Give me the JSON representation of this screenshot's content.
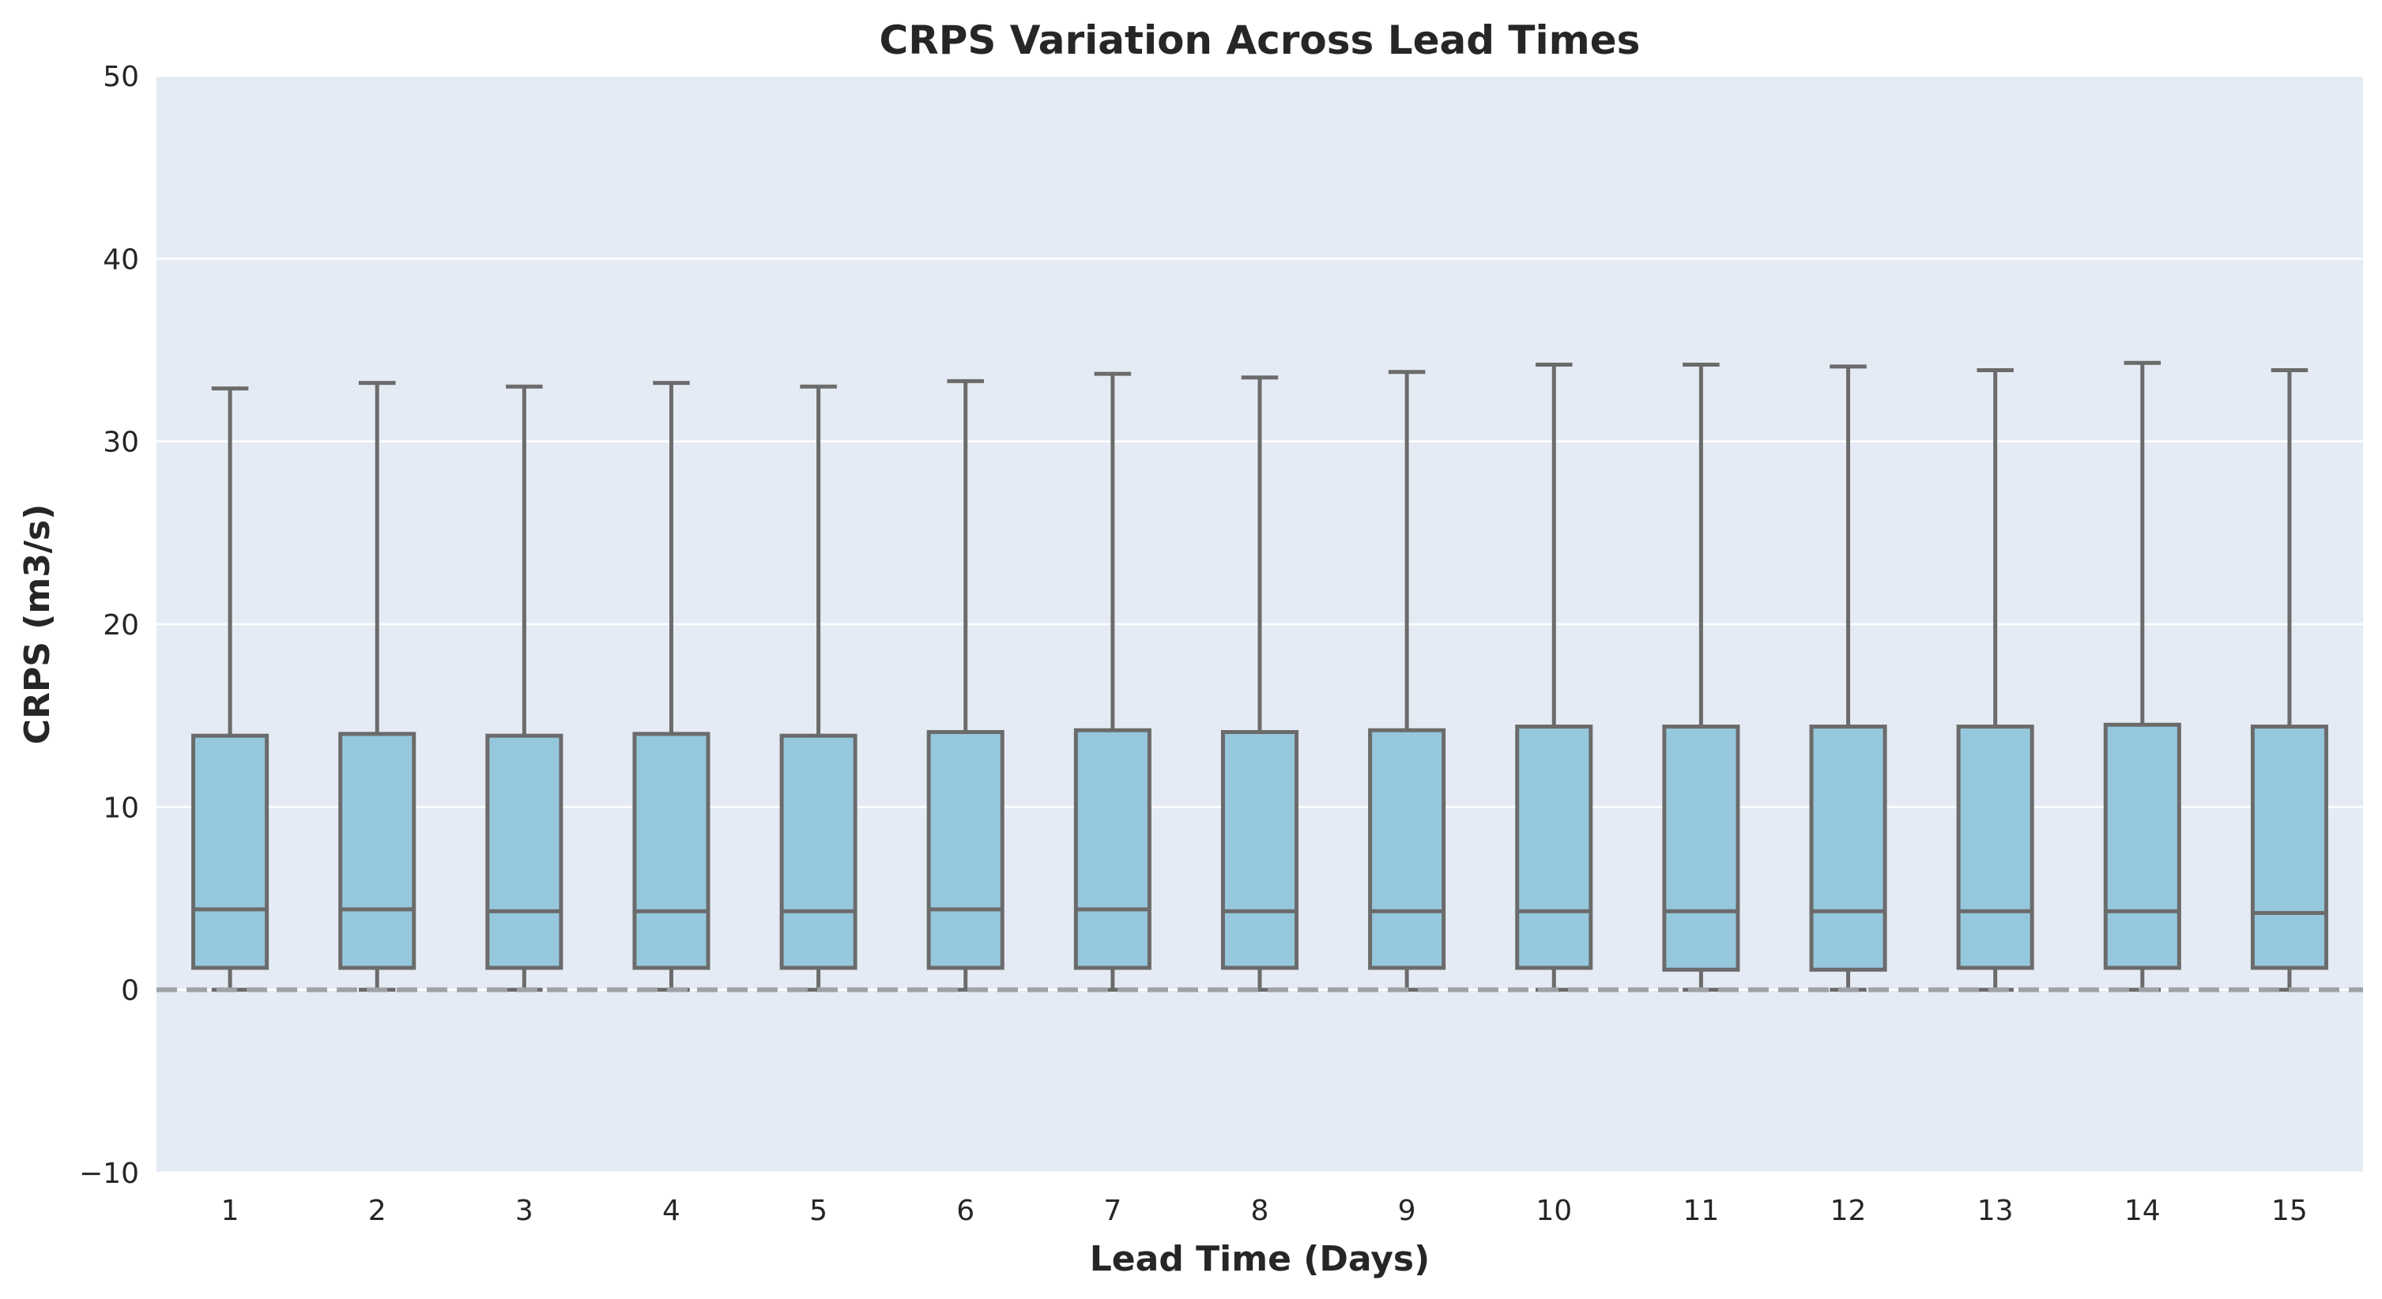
{
  "chart_data": {
    "type": "box",
    "title": "CRPS Variation Across Lead Times",
    "xlabel": "Lead Time (Days)",
    "ylabel": "CRPS (m3/s)",
    "ylim": [
      -10,
      50
    ],
    "yticks": [
      -10,
      0,
      10,
      20,
      30,
      40,
      50
    ],
    "ytick_labels": [
      "−10",
      "0",
      "10",
      "20",
      "30",
      "40",
      "50"
    ],
    "grid": true,
    "reference_line": {
      "y": 0,
      "style": "dashed"
    },
    "colors": {
      "background": "#e5ebf4",
      "grid": "#ffffff",
      "box_fill": "#96c8dd",
      "box_edge": "#6b6b6b",
      "reference_line": "#9ea2a6"
    },
    "categories": [
      "1",
      "2",
      "3",
      "4",
      "5",
      "6",
      "7",
      "8",
      "9",
      "10",
      "11",
      "12",
      "13",
      "14",
      "15"
    ],
    "boxes": [
      {
        "category": "1",
        "whisker_low": 0,
        "q1": 1.2,
        "median": 4.4,
        "q3": 13.9,
        "whisker_high": 32.9
      },
      {
        "category": "2",
        "whisker_low": 0,
        "q1": 1.2,
        "median": 4.4,
        "q3": 14.0,
        "whisker_high": 33.2
      },
      {
        "category": "3",
        "whisker_low": 0,
        "q1": 1.2,
        "median": 4.3,
        "q3": 13.9,
        "whisker_high": 33.0
      },
      {
        "category": "4",
        "whisker_low": 0,
        "q1": 1.2,
        "median": 4.3,
        "q3": 14.0,
        "whisker_high": 33.2
      },
      {
        "category": "5",
        "whisker_low": 0,
        "q1": 1.2,
        "median": 4.3,
        "q3": 13.9,
        "whisker_high": 33.0
      },
      {
        "category": "6",
        "whisker_low": 0,
        "q1": 1.2,
        "median": 4.4,
        "q3": 14.1,
        "whisker_high": 33.3
      },
      {
        "category": "7",
        "whisker_low": 0,
        "q1": 1.2,
        "median": 4.4,
        "q3": 14.2,
        "whisker_high": 33.7
      },
      {
        "category": "8",
        "whisker_low": 0,
        "q1": 1.2,
        "median": 4.3,
        "q3": 14.1,
        "whisker_high": 33.5
      },
      {
        "category": "9",
        "whisker_low": 0,
        "q1": 1.2,
        "median": 4.3,
        "q3": 14.2,
        "whisker_high": 33.8
      },
      {
        "category": "10",
        "whisker_low": 0,
        "q1": 1.2,
        "median": 4.3,
        "q3": 14.4,
        "whisker_high": 34.2
      },
      {
        "category": "11",
        "whisker_low": 0,
        "q1": 1.1,
        "median": 4.3,
        "q3": 14.4,
        "whisker_high": 34.2
      },
      {
        "category": "12",
        "whisker_low": 0,
        "q1": 1.1,
        "median": 4.3,
        "q3": 14.4,
        "whisker_high": 34.1
      },
      {
        "category": "13",
        "whisker_low": 0,
        "q1": 1.2,
        "median": 4.3,
        "q3": 14.4,
        "whisker_high": 33.9
      },
      {
        "category": "14",
        "whisker_low": 0,
        "q1": 1.2,
        "median": 4.3,
        "q3": 14.5,
        "whisker_high": 34.3
      },
      {
        "category": "15",
        "whisker_low": 0,
        "q1": 1.2,
        "median": 4.2,
        "q3": 14.4,
        "whisker_high": 33.9
      }
    ]
  }
}
